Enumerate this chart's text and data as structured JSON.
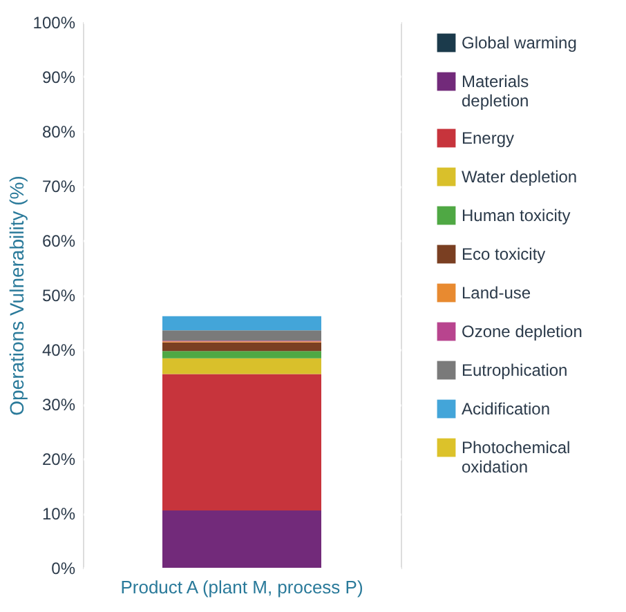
{
  "chart_data": {
    "type": "bar",
    "stacked": true,
    "ylabel": "Operations Vulnerability (%)",
    "categories": [
      "Product A (plant M, process P)"
    ],
    "series": [
      {
        "name": "Global warming",
        "color": "#1b3a4b",
        "values": [
          0
        ]
      },
      {
        "name": "Materials depletion",
        "color": "#722a7a",
        "values": [
          10.5
        ]
      },
      {
        "name": "Energy",
        "color": "#c7343c",
        "values": [
          25.0
        ]
      },
      {
        "name": "Water depletion",
        "color": "#d9c02b",
        "values": [
          2.9
        ]
      },
      {
        "name": "Human toxicity",
        "color": "#4fa844",
        "values": [
          1.3
        ]
      },
      {
        "name": "Eco toxicity",
        "color": "#7a3f22",
        "values": [
          1.6
        ]
      },
      {
        "name": "Land-use",
        "color": "#e88a30",
        "values": [
          0.2
        ]
      },
      {
        "name": "Ozone depletion",
        "color": "#b8448e",
        "values": [
          0.1
        ]
      },
      {
        "name": "Eutrophication",
        "color": "#7a7a7a",
        "values": [
          1.9
        ]
      },
      {
        "name": "Acidification",
        "color": "#43a5d9",
        "values": [
          2.6
        ]
      },
      {
        "name": "Photochemical oxidation",
        "color": "#dcc22a",
        "values": [
          0
        ]
      }
    ],
    "ylim": [
      0,
      100
    ],
    "yticks": [
      {
        "value": 0,
        "label": "0%"
      },
      {
        "value": 10,
        "label": "10%"
      },
      {
        "value": 20,
        "label": "20%"
      },
      {
        "value": 30,
        "label": "30%"
      },
      {
        "value": 40,
        "label": "40%"
      },
      {
        "value": 50,
        "label": "50%"
      },
      {
        "value": 60,
        "label": "60%"
      },
      {
        "value": 70,
        "label": "70%"
      },
      {
        "value": 80,
        "label": "80%"
      },
      {
        "value": 90,
        "label": "90%"
      },
      {
        "value": 100,
        "label": "100%"
      }
    ],
    "grid": "y",
    "legend": "right"
  }
}
